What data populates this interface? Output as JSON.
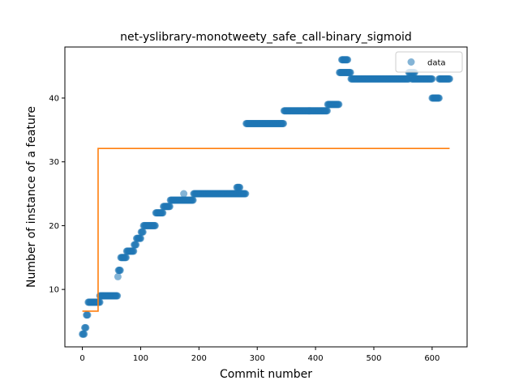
{
  "chart_data": {
    "type": "scatter",
    "title": "net-yslibrary-monotweety_safe_call-binary_sigmoid",
    "xlabel": "Commit number",
    "ylabel": "Number of instance of a feature",
    "xlim": [
      -30,
      660
    ],
    "ylim": [
      1,
      48
    ],
    "xticks": [
      0,
      100,
      200,
      300,
      400,
      500,
      600
    ],
    "yticks": [
      10,
      20,
      30,
      40
    ],
    "grid": false,
    "legend": {
      "placement": "top-right",
      "entries": [
        "data"
      ]
    },
    "colors": {
      "data": "#1f77b4",
      "fit": "#ff7f0e"
    },
    "series": [
      {
        "name": "data",
        "kind": "scatter",
        "segments": [
          {
            "x_start": 0,
            "x_end": 3,
            "y": 3
          },
          {
            "x_start": 4,
            "x_end": 6,
            "y": 4
          },
          {
            "x_start": 7,
            "x_end": 9,
            "y": 6
          },
          {
            "x_start": 10,
            "x_end": 30,
            "y": 8
          },
          {
            "x_start": 30,
            "x_end": 60,
            "y": 9
          },
          {
            "x_start": 61,
            "x_end": 61,
            "y": 12
          },
          {
            "x_start": 62,
            "x_end": 65,
            "y": 13
          },
          {
            "x_start": 66,
            "x_end": 75,
            "y": 15
          },
          {
            "x_start": 76,
            "x_end": 88,
            "y": 16
          },
          {
            "x_start": 89,
            "x_end": 92,
            "y": 17
          },
          {
            "x_start": 93,
            "x_end": 100,
            "y": 18
          },
          {
            "x_start": 101,
            "x_end": 104,
            "y": 19
          },
          {
            "x_start": 105,
            "x_end": 125,
            "y": 20
          },
          {
            "x_start": 126,
            "x_end": 138,
            "y": 22
          },
          {
            "x_start": 139,
            "x_end": 150,
            "y": 23
          },
          {
            "x_start": 151,
            "x_end": 190,
            "y": 24
          },
          {
            "x_start": 174,
            "x_end": 174,
            "y": 25
          },
          {
            "x_start": 191,
            "x_end": 280,
            "y": 25
          },
          {
            "x_start": 265,
            "x_end": 270,
            "y": 26
          },
          {
            "x_start": 281,
            "x_end": 345,
            "y": 36
          },
          {
            "x_start": 346,
            "x_end": 420,
            "y": 38
          },
          {
            "x_start": 421,
            "x_end": 440,
            "y": 39
          },
          {
            "x_start": 441,
            "x_end": 455,
            "y": 44
          },
          {
            "x_start": 445,
            "x_end": 455,
            "y": 46
          },
          {
            "x_start": 456,
            "x_end": 460,
            "y": 44
          },
          {
            "x_start": 461,
            "x_end": 560,
            "y": 43
          },
          {
            "x_start": 560,
            "x_end": 570,
            "y": 44
          },
          {
            "x_start": 565,
            "x_end": 600,
            "y": 43
          },
          {
            "x_start": 600,
            "x_end": 612,
            "y": 40
          },
          {
            "x_start": 612,
            "x_end": 630,
            "y": 43
          }
        ]
      },
      {
        "kind": "line",
        "x": [
          0,
          27,
          27,
          630
        ],
        "y": [
          6.6,
          6.6,
          32.1,
          32.1
        ]
      }
    ]
  }
}
